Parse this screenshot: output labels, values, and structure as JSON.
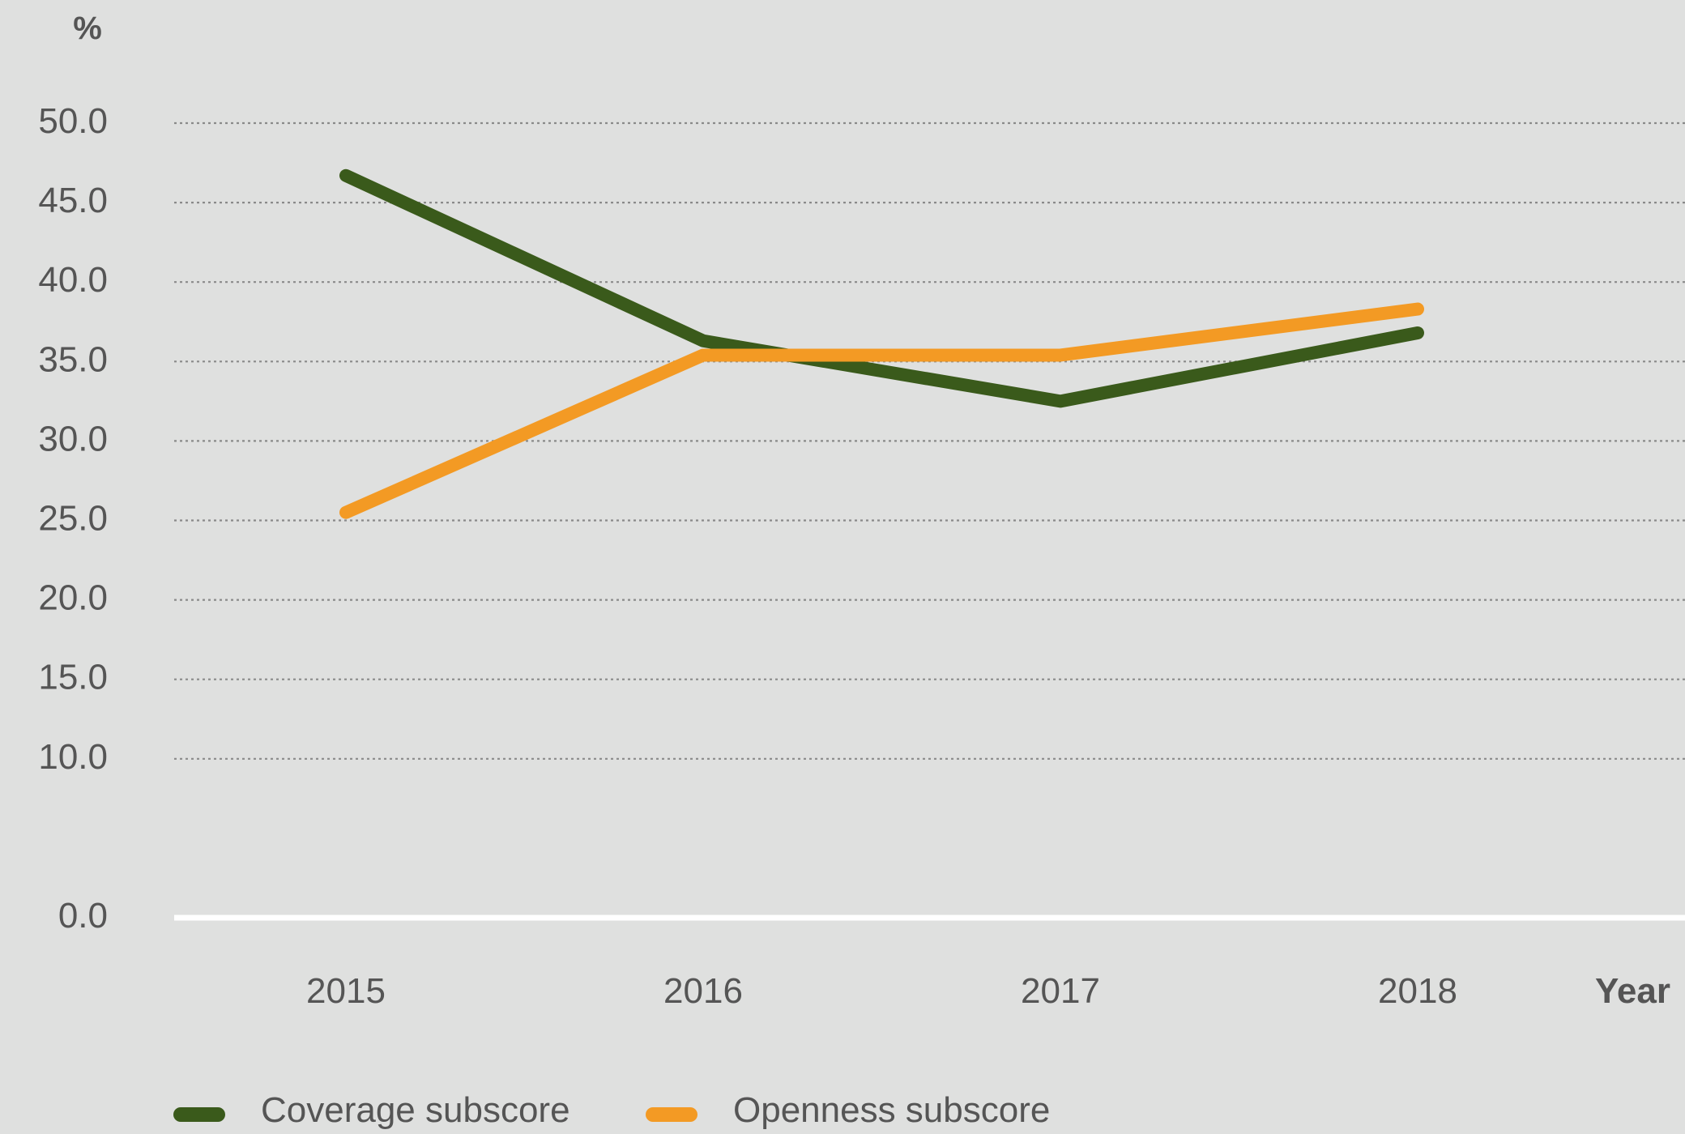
{
  "chart_data": {
    "type": "line",
    "ylabel": "%",
    "xlabel": "Year",
    "x": [
      "2015",
      "2016",
      "2017",
      "2018"
    ],
    "ylim": [
      0,
      50
    ],
    "ytick_labels": [
      "0.0",
      "10.0",
      "15.0",
      "20.0",
      "25.0",
      "30.0",
      "35.0",
      "40.0",
      "45.0",
      "50.0"
    ],
    "grid": true,
    "legend_position": "bottom-left",
    "series": [
      {
        "name": "Coverage subscore",
        "color": "#3a5a1b",
        "values": [
          46.7,
          36.3,
          32.5,
          36.8
        ]
      },
      {
        "name": "Openness subscore",
        "color": "#f39a24",
        "values": [
          25.5,
          35.4,
          35.4,
          38.3
        ]
      }
    ]
  }
}
